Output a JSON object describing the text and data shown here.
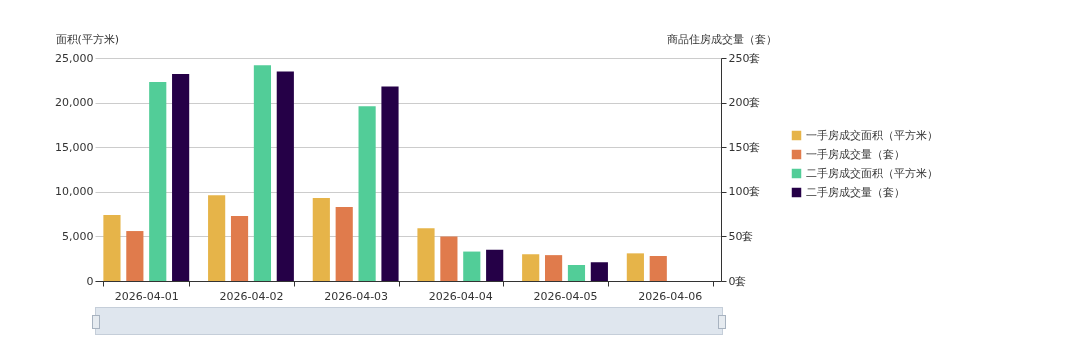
{
  "chart_data": {
    "type": "bar",
    "categories": [
      "2026-04-01",
      "2026-04-02",
      "2026-04-03",
      "2026-04-04",
      "2026-04-05",
      "2026-04-06"
    ],
    "ylabel": "面积(平方米)",
    "y2label": "商品住房成交量（套）",
    "ylim": [
      0,
      25000
    ],
    "yticks": [
      0,
      {
        "value": 5000,
        "label": "5,000"
      },
      {
        "value": 10000,
        "label": "10,000"
      },
      {
        "value": 15000,
        "label": "15,000"
      },
      {
        "value": 20000,
        "label": "20,000"
      },
      {
        "value": 25000,
        "label": "25,000"
      }
    ],
    "y2lim": [
      0,
      250
    ],
    "y2ticks": [
      {
        "value": 0,
        "label": "0套"
      },
      {
        "value": 50,
        "label": "50套"
      },
      {
        "value": 100,
        "label": "100套"
      },
      {
        "value": 150,
        "label": "150套"
      },
      {
        "value": 200,
        "label": "200套"
      },
      {
        "value": 250,
        "label": "250套"
      }
    ],
    "series": [
      {
        "name": "一手房成交面积（平方米）",
        "color": "#e6b449",
        "values": [
          7400,
          9600,
          9300,
          5900,
          3000,
          3100
        ]
      },
      {
        "name": "一手房成交量（套）",
        "color": "#e07b4c",
        "axis": "y2",
        "values": [
          56,
          73,
          83,
          50,
          29,
          28
        ]
      },
      {
        "name": "二手房成交面积（平方米）",
        "color": "#52cd98",
        "values": [
          22300,
          24200,
          19600,
          3300,
          1800,
          null
        ]
      },
      {
        "name": "二手房成交量（套）",
        "color": "#250047",
        "axis": "y2",
        "values": [
          232,
          235,
          218,
          35,
          21,
          null
        ]
      }
    ],
    "grid": "y",
    "legend": "right"
  }
}
